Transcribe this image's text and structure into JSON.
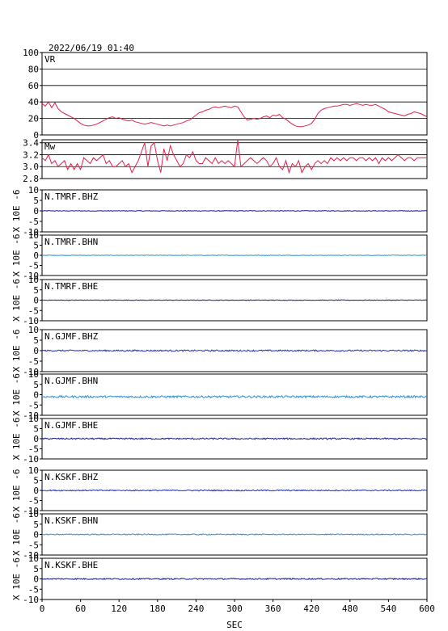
{
  "header": {
    "datetime": "2022/06/19  01:40"
  },
  "chart_data": {
    "type": "line",
    "xlabel": "SEC",
    "xlim": [
      0,
      600
    ],
    "xticks": [
      0,
      60,
      120,
      180,
      240,
      300,
      360,
      420,
      480,
      540,
      600
    ],
    "panels": [
      {
        "id": "vr",
        "label": "VR",
        "ylim": [
          0,
          100
        ],
        "yticks": [
          0,
          20,
          40,
          60,
          80,
          100
        ],
        "grid": true,
        "color": "#e0204a",
        "x": [
          0,
          5,
          10,
          15,
          20,
          25,
          30,
          35,
          40,
          45,
          50,
          55,
          60,
          65,
          70,
          75,
          80,
          85,
          90,
          95,
          100,
          105,
          110,
          115,
          120,
          125,
          130,
          135,
          140,
          145,
          150,
          155,
          160,
          165,
          170,
          175,
          180,
          185,
          190,
          195,
          200,
          205,
          210,
          215,
          220,
          225,
          230,
          235,
          240,
          245,
          250,
          255,
          260,
          265,
          270,
          275,
          280,
          285,
          290,
          295,
          300,
          305,
          310,
          315,
          320,
          325,
          330,
          335,
          340,
          345,
          350,
          355,
          360,
          365,
          370,
          375,
          380,
          385,
          390,
          395,
          400,
          405,
          410,
          415,
          420,
          425,
          430,
          435,
          440,
          445,
          450,
          455,
          460,
          465,
          470,
          475,
          480,
          485,
          490,
          495,
          500,
          505,
          510,
          515,
          520,
          525,
          530,
          535,
          540,
          545,
          550,
          555,
          560,
          565,
          570,
          575,
          580,
          585,
          590,
          595,
          600
        ],
        "values": [
          38,
          35,
          40,
          33,
          39,
          32,
          28,
          26,
          24,
          22,
          20,
          17,
          14,
          12,
          11,
          11,
          12,
          13,
          15,
          17,
          19,
          21,
          22,
          20,
          21,
          19,
          18,
          17,
          18,
          16,
          15,
          14,
          13,
          14,
          15,
          14,
          13,
          12,
          11,
          12,
          11,
          12,
          13,
          14,
          15,
          17,
          18,
          21,
          24,
          27,
          28,
          30,
          31,
          33,
          34,
          33,
          34,
          35,
          34,
          33,
          35,
          34,
          28,
          22,
          18,
          19,
          20,
          19,
          20,
          22,
          23,
          21,
          24,
          23,
          25,
          21,
          19,
          16,
          13,
          11,
          10,
          10,
          11,
          12,
          14,
          19,
          26,
          30,
          32,
          33,
          34,
          35,
          35,
          36,
          37,
          37,
          36,
          37,
          38,
          37,
          36,
          37,
          36,
          36,
          37,
          35,
          33,
          31,
          28,
          27,
          26,
          25,
          24,
          23,
          25,
          26,
          28,
          27,
          26,
          24,
          22
        ]
      },
      {
        "id": "mw",
        "label": "Mw",
        "ylim": [
          2.8,
          3.45
        ],
        "yticks": [
          2.8,
          3.0,
          3.2,
          3.4
        ],
        "grid": true,
        "color": "#e0204a",
        "x": [
          0,
          5,
          10,
          15,
          20,
          25,
          30,
          35,
          40,
          45,
          50,
          55,
          60,
          65,
          70,
          75,
          80,
          85,
          90,
          95,
          100,
          105,
          110,
          115,
          120,
          125,
          130,
          135,
          140,
          145,
          150,
          155,
          160,
          165,
          170,
          175,
          180,
          185,
          190,
          195,
          200,
          205,
          210,
          215,
          220,
          225,
          230,
          235,
          240,
          245,
          250,
          255,
          260,
          265,
          270,
          275,
          280,
          285,
          290,
          295,
          300,
          305,
          310,
          315,
          320,
          325,
          330,
          335,
          340,
          345,
          350,
          355,
          360,
          365,
          370,
          375,
          380,
          385,
          390,
          395,
          400,
          405,
          410,
          415,
          420,
          425,
          430,
          435,
          440,
          445,
          450,
          455,
          460,
          465,
          470,
          475,
          480,
          485,
          490,
          495,
          500,
          505,
          510,
          515,
          520,
          525,
          530,
          535,
          540,
          545,
          550,
          555,
          560,
          565,
          570,
          575,
          580,
          585,
          590,
          595,
          600
        ],
        "values": [
          3.15,
          3.1,
          3.2,
          3.05,
          3.1,
          3.0,
          3.05,
          3.1,
          2.95,
          3.05,
          2.95,
          3.05,
          2.95,
          3.15,
          3.1,
          3.05,
          3.15,
          3.1,
          3.15,
          3.2,
          3.05,
          3.1,
          3.0,
          3.0,
          3.05,
          3.1,
          3.0,
          3.05,
          2.9,
          3.0,
          3.1,
          3.25,
          3.4,
          3.0,
          3.35,
          3.4,
          3.1,
          2.9,
          3.3,
          3.1,
          3.35,
          3.2,
          3.1,
          3.0,
          3.05,
          3.2,
          3.15,
          3.25,
          3.1,
          3.05,
          3.05,
          3.15,
          3.1,
          3.05,
          3.15,
          3.05,
          3.1,
          3.05,
          3.1,
          3.05,
          3.0,
          3.45,
          3.0,
          3.05,
          3.1,
          3.15,
          3.1,
          3.05,
          3.1,
          3.15,
          3.1,
          3.0,
          3.05,
          3.15,
          3.0,
          2.95,
          3.1,
          2.9,
          3.05,
          3.0,
          3.1,
          2.9,
          3.0,
          3.05,
          2.95,
          3.05,
          3.1,
          3.05,
          3.1,
          3.05,
          3.15,
          3.1,
          3.15,
          3.1,
          3.15,
          3.1,
          3.15,
          3.15,
          3.1,
          3.15,
          3.15,
          3.1,
          3.15,
          3.1,
          3.15,
          3.05,
          3.15,
          3.1,
          3.15,
          3.1,
          3.15,
          3.2,
          3.15,
          3.1,
          3.15,
          3.15,
          3.1,
          3.15,
          3.15,
          3.15,
          3.15
        ]
      },
      {
        "id": "tmrf-bhz",
        "label": "N.TMRF.BHZ",
        "ylim": [
          -10,
          10
        ],
        "yticks": [
          -10,
          -5,
          0,
          5,
          10
        ],
        "grid": false,
        "color": "#1a1a80",
        "offset": 0.0,
        "noise": 0.15
      },
      {
        "id": "tmrf-bhn",
        "label": "N.TMRF.BHN",
        "ylim": [
          -10,
          10
        ],
        "yticks": [
          -10,
          -5,
          0,
          5,
          10
        ],
        "grid": false,
        "color": "#2a8ec8",
        "offset": 0.0,
        "noise": 0.12
      },
      {
        "id": "tmrf-bhe",
        "label": "N.TMRF.BHE",
        "ylim": [
          -10,
          10
        ],
        "yticks": [
          -10,
          -5,
          0,
          5,
          10
        ],
        "grid": false,
        "color": "#1a1a80",
        "offset": 0.0,
        "noise": 0.15
      },
      {
        "id": "gjmf-bhz",
        "label": "N.GJMF.BHZ",
        "ylim": [
          -10,
          10
        ],
        "yticks": [
          -10,
          -5,
          0,
          5,
          10
        ],
        "grid": false,
        "color": "#2030b0",
        "offset": 0.0,
        "noise": 0.35
      },
      {
        "id": "gjmf-bhn",
        "label": "N.GJMF.BHN",
        "ylim": [
          -10,
          10
        ],
        "yticks": [
          -10,
          -5,
          0,
          5,
          10
        ],
        "grid": false,
        "color": "#2a90d8",
        "offset": -1.0,
        "noise": 0.5
      },
      {
        "id": "gjmf-bhe",
        "label": "N.GJMF.BHE",
        "ylim": [
          -10,
          10
        ],
        "yticks": [
          -10,
          -5,
          0,
          5,
          10
        ],
        "grid": false,
        "color": "#1a1a80",
        "offset": 0.0,
        "noise": 0.35
      },
      {
        "id": "kskf-bhz",
        "label": "N.KSKF.BHZ",
        "ylim": [
          -10,
          10
        ],
        "yticks": [
          -10,
          -5,
          0,
          5,
          10
        ],
        "grid": false,
        "color": "#2030b0",
        "offset": 0.0,
        "noise": 0.3
      },
      {
        "id": "kskf-bhn",
        "label": "N.KSKF.BHN",
        "ylim": [
          -10,
          10
        ],
        "yticks": [
          -10,
          -5,
          0,
          5,
          10
        ],
        "grid": false,
        "color": "#2a90d8",
        "offset": 0.0,
        "noise": 0.25
      },
      {
        "id": "kskf-bhe",
        "label": "N.KSKF.BHE",
        "ylim": [
          -10,
          10
        ],
        "yticks": [
          -10,
          -5,
          0,
          5,
          10
        ],
        "grid": false,
        "color": "#1a1a80",
        "offset": 0.0,
        "noise": 0.3
      }
    ],
    "trace_axis_label": "X 10E -6"
  }
}
